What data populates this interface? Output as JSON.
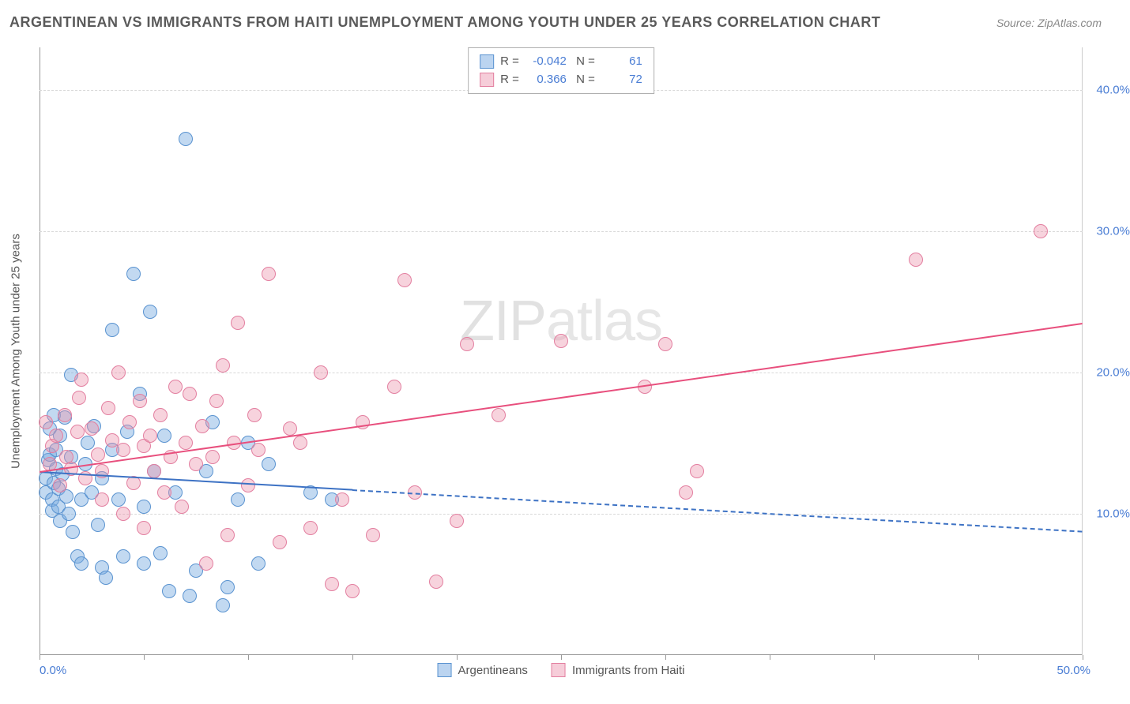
{
  "title": "ARGENTINEAN VS IMMIGRANTS FROM HAITI UNEMPLOYMENT AMONG YOUTH UNDER 25 YEARS CORRELATION CHART",
  "source_label": "Source: ZipAtlas.com",
  "ylabel": "Unemployment Among Youth under 25 years",
  "watermark_a": "ZIP",
  "watermark_b": "atlas",
  "chart": {
    "type": "scatter",
    "background_color": "#ffffff",
    "grid_color": "#d8d8d8",
    "axis_color": "#999999",
    "label_color": "#4a7dd4",
    "xlim": [
      0,
      50
    ],
    "ylim": [
      0,
      43
    ],
    "x_ticks": [
      0,
      5,
      10,
      15,
      20,
      25,
      30,
      35,
      40,
      45,
      50
    ],
    "x_tick_labels": {
      "0": "0.0%",
      "50": "50.0%"
    },
    "y_gridlines": [
      10,
      20,
      30,
      40
    ],
    "y_tick_labels": {
      "10": "10.0%",
      "20": "20.0%",
      "30": "30.0%",
      "40": "40.0%"
    },
    "marker_size": 18,
    "series": [
      {
        "name": "Argentineans",
        "color_fill": "rgba(120,170,225,0.45)",
        "color_stroke": "#5a93d0",
        "R": "-0.042",
        "N": "61",
        "trend": {
          "x1": 0,
          "y1": 13.0,
          "x2": 50,
          "y2": 8.8,
          "solid_until_x": 15,
          "color": "#3d72c4"
        },
        "points": [
          [
            0.3,
            12.5
          ],
          [
            0.3,
            11.5
          ],
          [
            0.4,
            13.8
          ],
          [
            0.5,
            16.0
          ],
          [
            0.5,
            14.2
          ],
          [
            0.6,
            11.0
          ],
          [
            0.6,
            10.2
          ],
          [
            0.7,
            17.0
          ],
          [
            0.7,
            12.2
          ],
          [
            0.8,
            14.5
          ],
          [
            0.8,
            13.2
          ],
          [
            0.9,
            11.8
          ],
          [
            0.9,
            10.5
          ],
          [
            1.0,
            9.5
          ],
          [
            1.0,
            15.5
          ],
          [
            1.1,
            12.8
          ],
          [
            1.2,
            16.8
          ],
          [
            1.3,
            11.2
          ],
          [
            1.4,
            10.0
          ],
          [
            1.5,
            19.8
          ],
          [
            1.5,
            14.0
          ],
          [
            1.6,
            8.7
          ],
          [
            1.8,
            7.0
          ],
          [
            2.0,
            6.5
          ],
          [
            2.0,
            11.0
          ],
          [
            2.2,
            13.5
          ],
          [
            2.3,
            15.0
          ],
          [
            2.5,
            11.5
          ],
          [
            2.6,
            16.2
          ],
          [
            2.8,
            9.2
          ],
          [
            3.0,
            12.5
          ],
          [
            3.0,
            6.2
          ],
          [
            3.2,
            5.5
          ],
          [
            3.5,
            23.0
          ],
          [
            3.5,
            14.5
          ],
          [
            3.8,
            11.0
          ],
          [
            4.0,
            7.0
          ],
          [
            4.2,
            15.8
          ],
          [
            4.5,
            27.0
          ],
          [
            4.8,
            18.5
          ],
          [
            5.0,
            10.5
          ],
          [
            5.0,
            6.5
          ],
          [
            5.3,
            24.3
          ],
          [
            5.5,
            13.0
          ],
          [
            5.8,
            7.2
          ],
          [
            6.0,
            15.5
          ],
          [
            6.2,
            4.5
          ],
          [
            6.5,
            11.5
          ],
          [
            7.0,
            36.5
          ],
          [
            7.2,
            4.2
          ],
          [
            7.5,
            6.0
          ],
          [
            8.0,
            13.0
          ],
          [
            8.3,
            16.5
          ],
          [
            8.8,
            3.5
          ],
          [
            9.0,
            4.8
          ],
          [
            9.5,
            11.0
          ],
          [
            10.0,
            15.0
          ],
          [
            10.5,
            6.5
          ],
          [
            11.0,
            13.5
          ],
          [
            13.0,
            11.5
          ],
          [
            14.0,
            11.0
          ]
        ]
      },
      {
        "name": "Immigrants from Haiti",
        "color_fill": "rgba(235,145,170,0.4)",
        "color_stroke": "#e37fa0",
        "R": "0.366",
        "N": "72",
        "trend": {
          "x1": 0,
          "y1": 13.0,
          "x2": 50,
          "y2": 23.5,
          "solid_until_x": 50,
          "color": "#e84f7d"
        },
        "points": [
          [
            0.3,
            16.5
          ],
          [
            0.5,
            13.5
          ],
          [
            0.6,
            14.8
          ],
          [
            0.8,
            15.5
          ],
          [
            1.0,
            12.0
          ],
          [
            1.2,
            17.0
          ],
          [
            1.3,
            14.0
          ],
          [
            1.5,
            13.2
          ],
          [
            1.8,
            15.8
          ],
          [
            1.9,
            18.2
          ],
          [
            2.0,
            19.5
          ],
          [
            2.2,
            12.5
          ],
          [
            2.5,
            16.0
          ],
          [
            2.8,
            14.2
          ],
          [
            3.0,
            13.0
          ],
          [
            3.0,
            11.0
          ],
          [
            3.3,
            17.5
          ],
          [
            3.5,
            15.2
          ],
          [
            3.8,
            20.0
          ],
          [
            4.0,
            10.0
          ],
          [
            4.0,
            14.5
          ],
          [
            4.3,
            16.5
          ],
          [
            4.5,
            12.2
          ],
          [
            4.8,
            18.0
          ],
          [
            5.0,
            14.8
          ],
          [
            5.0,
            9.0
          ],
          [
            5.3,
            15.5
          ],
          [
            5.5,
            13.0
          ],
          [
            5.8,
            17.0
          ],
          [
            6.0,
            11.5
          ],
          [
            6.3,
            14.0
          ],
          [
            6.5,
            19.0
          ],
          [
            6.8,
            10.5
          ],
          [
            7.0,
            15.0
          ],
          [
            7.2,
            18.5
          ],
          [
            7.5,
            13.5
          ],
          [
            7.8,
            16.2
          ],
          [
            8.0,
            6.5
          ],
          [
            8.3,
            14.0
          ],
          [
            8.5,
            18.0
          ],
          [
            8.8,
            20.5
          ],
          [
            9.0,
            8.5
          ],
          [
            9.3,
            15.0
          ],
          [
            9.5,
            23.5
          ],
          [
            10.0,
            12.0
          ],
          [
            10.3,
            17.0
          ],
          [
            10.5,
            14.5
          ],
          [
            11.0,
            27.0
          ],
          [
            11.5,
            8.0
          ],
          [
            12.0,
            16.0
          ],
          [
            12.5,
            15.0
          ],
          [
            13.0,
            9.0
          ],
          [
            13.5,
            20.0
          ],
          [
            14.0,
            5.0
          ],
          [
            14.5,
            11.0
          ],
          [
            15.0,
            4.5
          ],
          [
            15.5,
            16.5
          ],
          [
            16.0,
            8.5
          ],
          [
            17.0,
            19.0
          ],
          [
            17.5,
            26.5
          ],
          [
            18.0,
            11.5
          ],
          [
            19.0,
            5.2
          ],
          [
            20.0,
            9.5
          ],
          [
            20.5,
            22.0
          ],
          [
            22.0,
            17.0
          ],
          [
            29.0,
            19.0
          ],
          [
            30.0,
            22.0
          ],
          [
            31.0,
            11.5
          ],
          [
            31.5,
            13.0
          ],
          [
            42.0,
            28.0
          ],
          [
            48.0,
            30.0
          ],
          [
            25.0,
            22.2
          ]
        ]
      }
    ]
  },
  "bottom_legend": [
    {
      "swatch": "blue",
      "label": "Argentineans"
    },
    {
      "swatch": "pink",
      "label": "Immigrants from Haiti"
    }
  ]
}
